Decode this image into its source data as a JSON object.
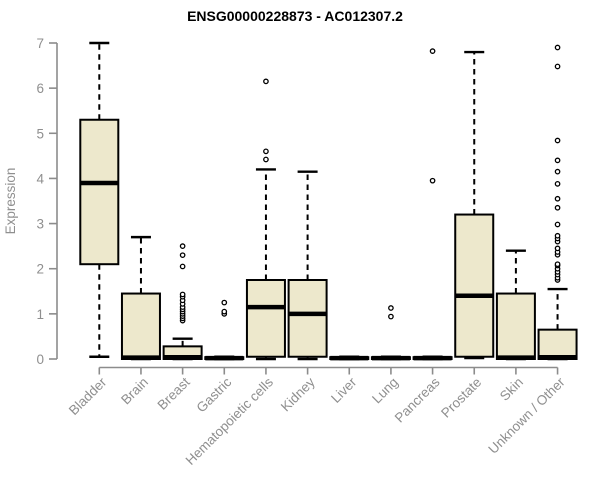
{
  "chart_data": {
    "type": "boxplot",
    "title": "ENSG00000228873 - AC012307.2",
    "xlabel": "",
    "ylabel": "Expression",
    "ylim": [
      0,
      7
    ],
    "yticks": [
      0,
      1,
      2,
      3,
      4,
      5,
      6,
      7
    ],
    "grid": false,
    "legend": "none",
    "categories": [
      "Bladder",
      "Brain",
      "Breast",
      "Gastric",
      "Hematopoietic cells",
      "Kidney",
      "Liver",
      "Lung",
      "Pancreas",
      "Prostate",
      "Skin",
      "Unknown / Other"
    ],
    "boxes": [
      {
        "category": "Bladder",
        "low": 0.05,
        "q1": 2.1,
        "median": 3.9,
        "q3": 5.3,
        "high": 7.0,
        "outliers": []
      },
      {
        "category": "Brain",
        "low": 0,
        "q1": 0,
        "median": 0.03,
        "q3": 1.45,
        "high": 2.7,
        "outliers": []
      },
      {
        "category": "Breast",
        "low": 0,
        "q1": 0,
        "median": 0.04,
        "q3": 0.28,
        "high": 0.45,
        "outliers": [
          0.85,
          0.9,
          0.95,
          1.0,
          1.05,
          1.1,
          1.15,
          1.22,
          1.3,
          1.38,
          1.43,
          2.05,
          2.3,
          2.5
        ]
      },
      {
        "category": "Gastric",
        "low": 0,
        "q1": 0,
        "median": 0.02,
        "q3": 0.04,
        "high": 0.05,
        "outliers": [
          1.0,
          1.05,
          1.25
        ]
      },
      {
        "category": "Hematopoietic cells",
        "low": 0,
        "q1": 0.05,
        "median": 1.15,
        "q3": 1.75,
        "high": 4.2,
        "outliers": [
          4.42,
          4.6,
          6.15
        ]
      },
      {
        "category": "Kidney",
        "low": 0,
        "q1": 0.05,
        "median": 1.0,
        "q3": 1.75,
        "high": 4.15,
        "outliers": []
      },
      {
        "category": "Liver",
        "low": 0,
        "q1": 0,
        "median": 0.02,
        "q3": 0.04,
        "high": 0.05,
        "outliers": []
      },
      {
        "category": "Lung",
        "low": 0,
        "q1": 0,
        "median": 0.02,
        "q3": 0.04,
        "high": 0.05,
        "outliers": [
          0.94,
          1.13
        ]
      },
      {
        "category": "Pancreas",
        "low": 0,
        "q1": 0,
        "median": 0.02,
        "q3": 0.04,
        "high": 0.05,
        "outliers": [
          3.95,
          6.82
        ]
      },
      {
        "category": "Prostate",
        "low": 0.02,
        "q1": 0.05,
        "median": 1.4,
        "q3": 3.2,
        "high": 6.8,
        "outliers": []
      },
      {
        "category": "Skin",
        "low": 0,
        "q1": 0,
        "median": 0.03,
        "q3": 1.45,
        "high": 2.4,
        "outliers": []
      },
      {
        "category": "Unknown / Other",
        "low": 0,
        "q1": 0,
        "median": 0.04,
        "q3": 0.65,
        "high": 1.55,
        "outliers": [
          1.75,
          1.8,
          1.87,
          1.93,
          2.0,
          2.07,
          2.1,
          2.31,
          2.37,
          2.45,
          2.6,
          2.67,
          2.73,
          2.98,
          3.35,
          3.55,
          3.88,
          4.15,
          4.4,
          4.84,
          6.48,
          6.9
        ]
      }
    ],
    "marker": "open-circle"
  },
  "colors": {
    "box_fill": "#EDE8CC",
    "box_stroke": "#000000",
    "median": "#000000",
    "whisker": "#000000",
    "outlier_stroke": "#000000",
    "outlier_fill": "#FFFFFF",
    "axis": "#8C8C8C",
    "tick_text": "#8F8F8F",
    "title_text": "#000000",
    "background": "#FFFFFF"
  }
}
